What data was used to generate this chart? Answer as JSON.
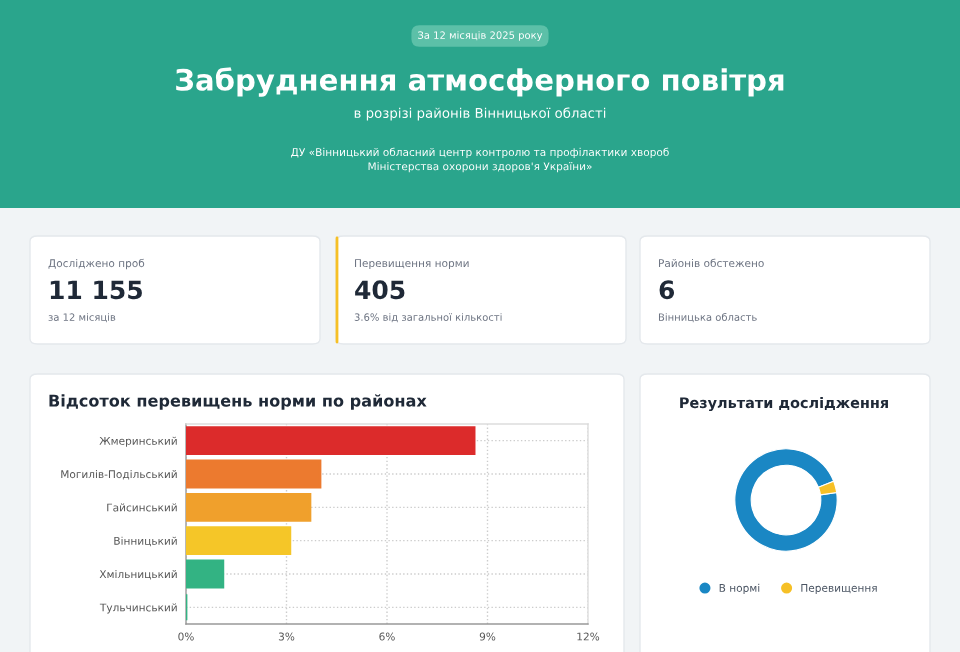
{
  "chart_data": [
    {
      "type": "other",
      "title": "Забруднення атмосферного повітря",
      "subtitle": "в розрізі районів Вінницької області",
      "annotations": [
        "За 12 місяців 2025 року",
        "ДУ «Вінницький обласний центр контролю та профілактики хвороб Міністерства охорони здоров'я України»"
      ]
    },
    {
      "type": "other",
      "annotations": [
        "Досліджено проб",
        "11 155",
        "за 12 місяців",
        "Перевищення норми",
        "405",
        "3.6% від загальної кількості",
        "Районів обстежено",
        "6",
        "Вінницька область"
      ]
    },
    {
      "type": "bar",
      "orientation": "horizontal",
      "title": "Відсоток перевищень норми по районах",
      "categories": [
        "Жмеринський",
        "Могилів-Подільський",
        "Гайсинський",
        "Вінницький",
        "Хмільницький",
        "Тульчинський"
      ],
      "values": [
        8.6,
        4.0,
        3.7,
        3.1,
        1.1,
        0
      ],
      "colors": [
        "#dc2b2b",
        "#ec7a2f",
        "#f0a02c",
        "#f5c628",
        "#33b383",
        "#33b383"
      ],
      "xlim": [
        0,
        12
      ],
      "xticks": [
        {
          "value": 0,
          "label": "0%"
        },
        {
          "value": 3,
          "label": "3%"
        },
        {
          "value": 6,
          "label": "6%"
        },
        {
          "value": 9,
          "label": "9%"
        },
        {
          "value": 12,
          "label": "12%"
        }
      ],
      "grid": true
    },
    {
      "type": "donut",
      "title": "Результати дослідження",
      "categories": [
        "В нормі",
        "Перевищення"
      ],
      "values": [
        96.4,
        3.6
      ],
      "colors": [
        "#1a87c4",
        "#f6c026"
      ],
      "legend": "bottom"
    }
  ]
}
